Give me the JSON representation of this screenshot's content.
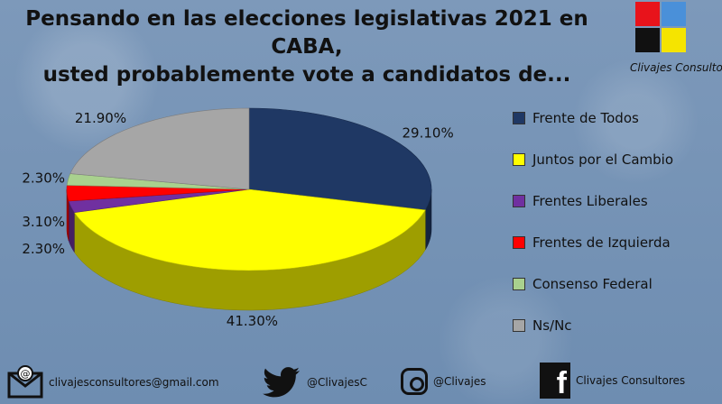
{
  "header": {
    "title_line1": "Pensando en las elecciones legislativas 2021 en CABA,",
    "title_line2": "usted probablemente vote a candidatos de..."
  },
  "logo": {
    "text": "Clivajes Consultores",
    "colors": [
      "#e8131b",
      "#4a90d9",
      "#111111",
      "#f5e400"
    ]
  },
  "chart_data": {
    "type": "pie",
    "title": "Pensando en las elecciones legislativas 2021 en CABA, usted probablemente vote a candidatos de...",
    "style": "3d",
    "legend_position": "right",
    "slices": [
      {
        "label": "Frente de Todos",
        "value": 29.1,
        "display": "29.10%",
        "color": "#1f3864"
      },
      {
        "label": "Juntos por el Cambio",
        "value": 41.3,
        "display": "41.30%",
        "color": "#ffff00"
      },
      {
        "label": "Frentes Liberales",
        "value": 2.3,
        "display": "2.30%",
        "color": "#7030a0"
      },
      {
        "label": "Frentes de Izquierda",
        "value": 3.1,
        "display": "3.10%",
        "color": "#ff0000"
      },
      {
        "label": "Consenso Federal",
        "value": 2.3,
        "display": "2.30%",
        "color": "#a9d18e"
      },
      {
        "label": "Ns/Nc",
        "value": 21.9,
        "display": "21.90%",
        "color": "#a6a6a6"
      }
    ]
  },
  "footer": {
    "email": "clivajesconsultores@gmail.com",
    "twitter": "@ClivajesC",
    "instagram": "@Clivajes",
    "facebook": "Clivajes Consultores",
    "icons": [
      "email-icon",
      "twitter-icon",
      "instagram-icon",
      "facebook-icon"
    ]
  }
}
